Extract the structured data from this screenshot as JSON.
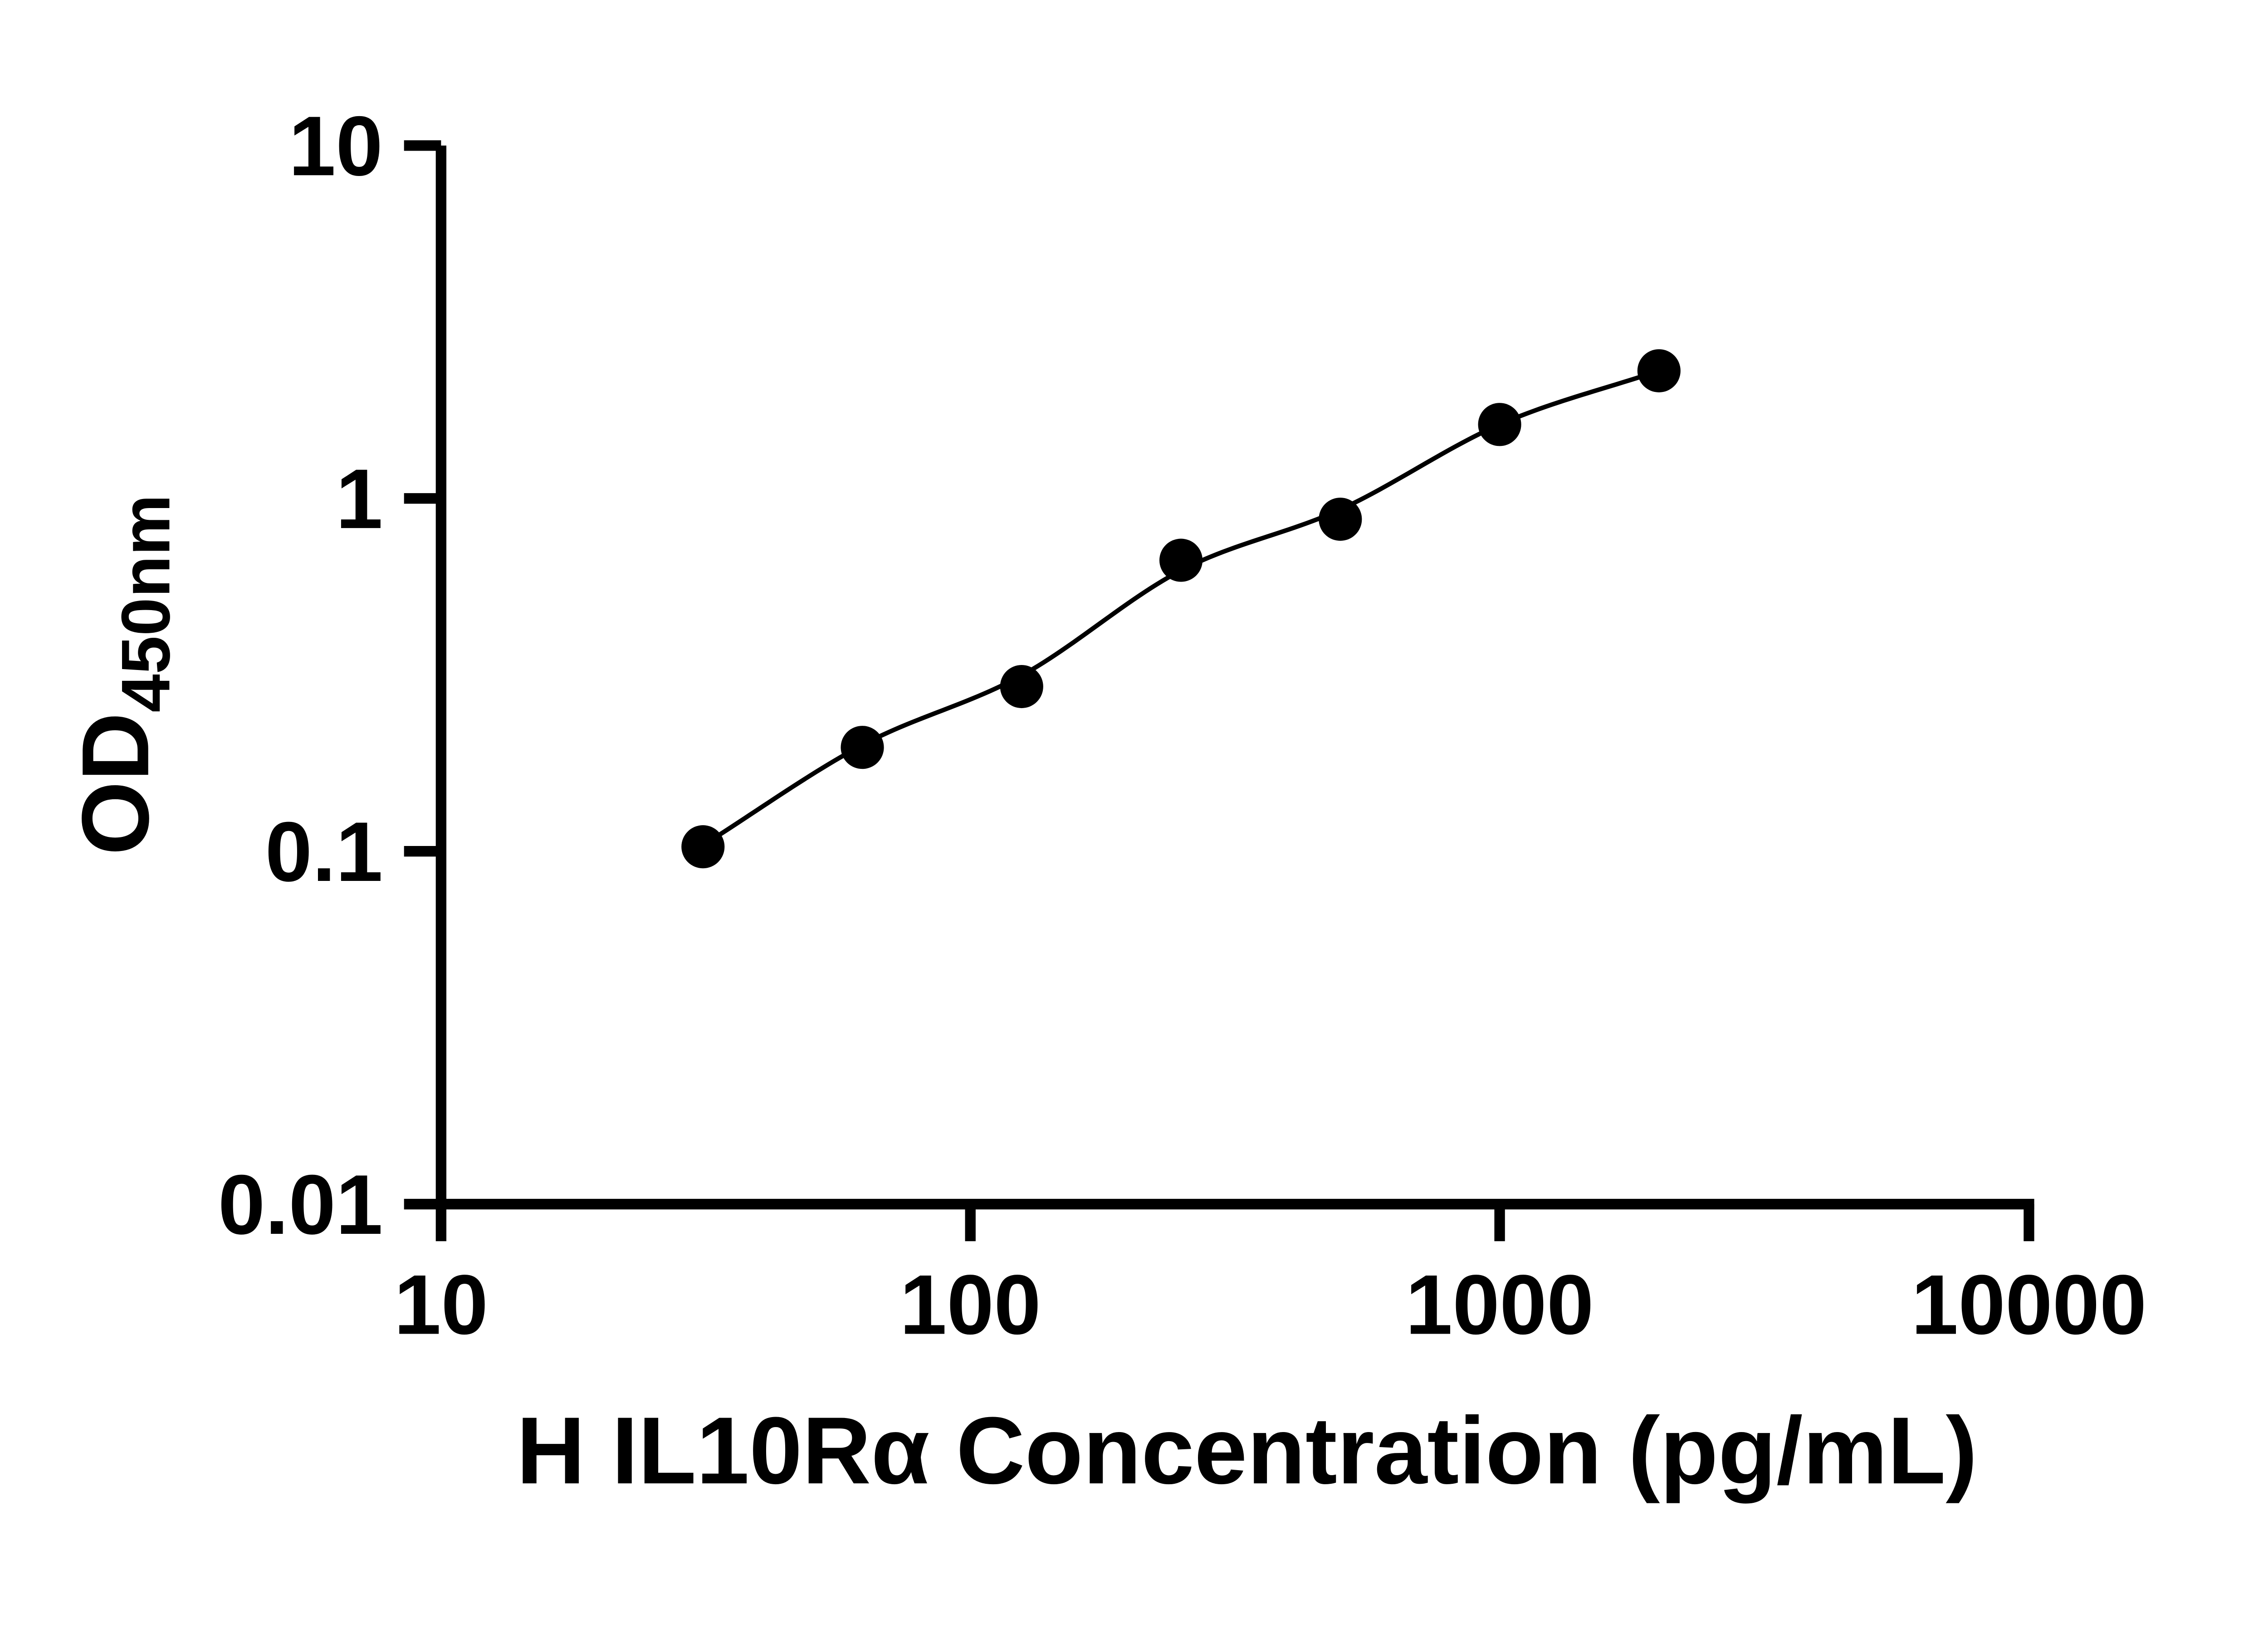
{
  "figure": {
    "description": "ELISA standard curve, log-log scatter plot with fitted line",
    "background_color": "#ffffff"
  },
  "chart_data": {
    "type": "scatter",
    "title": "",
    "xlabel": "H IL10Rα Concentration (pg/mL)",
    "ylabel": "OD450nm",
    "ylabel_main": "OD",
    "ylabel_subscript": "450nm",
    "x_scale": "log10",
    "y_scale": "log10",
    "xlim": [
      10,
      10000
    ],
    "ylim": [
      0.01,
      10
    ],
    "grid": false,
    "legend_position": "none",
    "x_ticks": {
      "values": [
        10,
        100,
        1000,
        10000
      ],
      "labels": [
        "10",
        "100",
        "1000",
        "10000"
      ]
    },
    "y_ticks": {
      "values": [
        10,
        1,
        0.1,
        0.01
      ],
      "labels": [
        "10",
        "1",
        "0.1",
        "0.01"
      ]
    },
    "series": [
      {
        "name": "standards",
        "marker": "filled-circle",
        "color": "#000000",
        "x": [
          31.25,
          62.5,
          125,
          250,
          500,
          1000,
          2000
        ],
        "y": [
          0.103,
          0.197,
          0.293,
          0.668,
          0.873,
          1.62,
          2.3
        ]
      }
    ],
    "fit_curve": {
      "name": "fit-line",
      "color": "#000000",
      "anchors_x": [
        31.25,
        62.5,
        125,
        250,
        500,
        1000,
        2000
      ],
      "anchors_y": [
        0.104,
        0.2,
        0.315,
        0.625,
        0.93,
        1.62,
        2.3
      ]
    },
    "colors": {
      "foreground": "#000000",
      "background": "#ffffff"
    }
  }
}
